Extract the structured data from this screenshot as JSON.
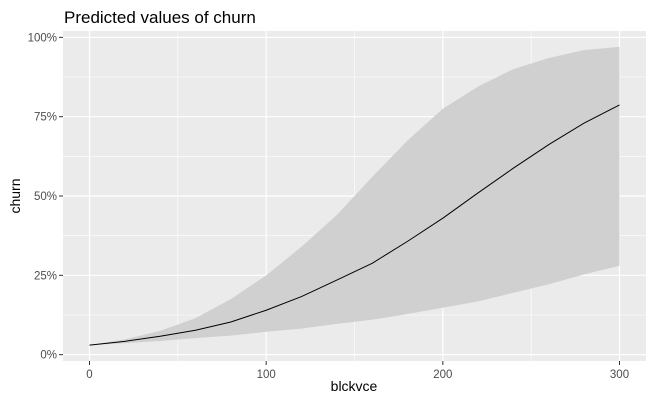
{
  "chart_data": {
    "type": "line",
    "title": "Predicted values of churn",
    "xlabel": "blckvce",
    "ylabel": "churn",
    "xlim": [
      -15,
      315
    ],
    "ylim": [
      -0.02,
      1.02
    ],
    "x_ticks": [
      0,
      100,
      200,
      300
    ],
    "x_tick_labels": [
      "0",
      "100",
      "200",
      "300"
    ],
    "y_ticks": [
      0,
      0.25,
      0.5,
      0.75,
      1.0
    ],
    "y_tick_labels": [
      "0%",
      "25%",
      "50%",
      "75%",
      "100%"
    ],
    "grid": true,
    "series": [
      {
        "type": "line",
        "color": "#000000",
        "x": [
          0,
          20,
          40,
          60,
          80,
          100,
          120,
          140,
          160,
          180,
          200,
          220,
          240,
          260,
          280,
          300
        ],
        "y": [
          0.03,
          0.042,
          0.058,
          0.077,
          0.103,
          0.14,
          0.183,
          0.235,
          0.288,
          0.357,
          0.43,
          0.51,
          0.588,
          0.662,
          0.73,
          0.787
        ]
      },
      {
        "type": "ribbon",
        "color": "#d0d0d0",
        "x": [
          0,
          20,
          40,
          60,
          80,
          100,
          120,
          140,
          160,
          180,
          200,
          220,
          240,
          260,
          280,
          300
        ],
        "lower": [
          0.03,
          0.036,
          0.043,
          0.052,
          0.06,
          0.072,
          0.082,
          0.097,
          0.11,
          0.128,
          0.148,
          0.168,
          0.195,
          0.222,
          0.253,
          0.28
        ],
        "upper": [
          0.03,
          0.048,
          0.075,
          0.115,
          0.175,
          0.25,
          0.34,
          0.44,
          0.56,
          0.675,
          0.775,
          0.845,
          0.9,
          0.935,
          0.96,
          0.97
        ]
      }
    ]
  }
}
